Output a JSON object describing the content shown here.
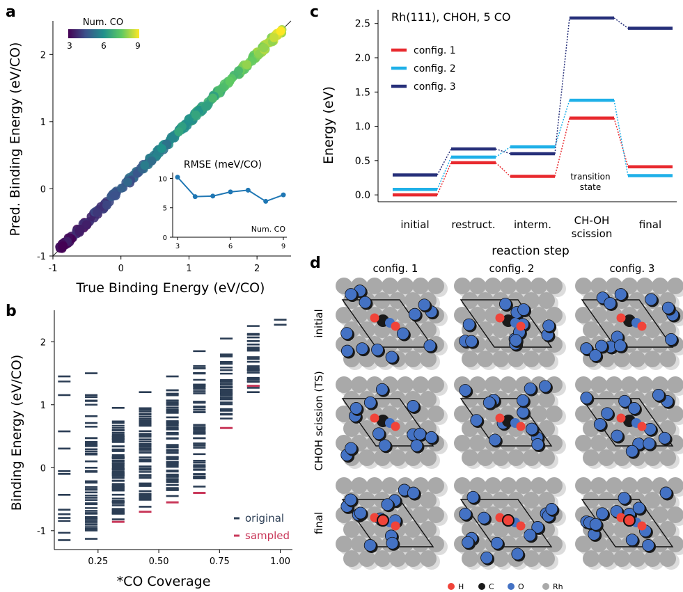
{
  "panels": {
    "a": {
      "letter": "a",
      "xlabel": "True Binding Energy (eV/CO)",
      "ylabel": "Pred. Binding Energy (eV/CO)",
      "x_ticks": [
        "-1",
        "0",
        "1",
        "2"
      ],
      "y_ticks": [
        "-1",
        "0",
        "1",
        "2"
      ],
      "colorbar_title": "Num. CO",
      "colorbar_ticks": [
        "3",
        "6",
        "9"
      ],
      "colors": {
        "low": "#440154",
        "mid": "#21918c",
        "high": "#fde725"
      },
      "inset": {
        "title": "RMSE (meV/CO)",
        "xlabel": "Num. CO",
        "x_ticks": [
          "3",
          "6",
          "9"
        ],
        "y_ticks": [
          "0",
          "5",
          "10"
        ]
      }
    },
    "b": {
      "letter": "b",
      "xlabel": "*CO Coverage",
      "ylabel": "Binding Energy (eV/CO)",
      "x_ticks": [
        "0.25",
        "0.50",
        "0.75",
        "1.00"
      ],
      "y_ticks": [
        "-1",
        "0",
        "1",
        "2"
      ],
      "legend": {
        "original": "original",
        "sampled": "sampled"
      },
      "colors": {
        "original": "#2c3e55",
        "sampled": "#c9385a"
      }
    },
    "c": {
      "letter": "c",
      "title": "Rh(111), CHOH, 5 CO",
      "ylabel": "Energy (eV)",
      "xlabel": "reaction step",
      "y_ticks": [
        "0.0",
        "0.5",
        "1.0",
        "1.5",
        "2.0",
        "2.5"
      ],
      "steps": [
        "initial",
        "restruct.",
        "interm.",
        "CH-OH\nscission",
        "final"
      ],
      "annotation": "transition\nstate",
      "legend": [
        "config. 1",
        "config. 2",
        "config. 3"
      ]
    },
    "d": {
      "letter": "d",
      "columns": [
        "config. 1",
        "config. 2",
        "config. 3"
      ],
      "rows": [
        "initial",
        "CHOH scission (TS)",
        "final"
      ],
      "legend": [
        "H",
        "C",
        "O",
        "Rh"
      ],
      "colors": {
        "H": "#f0443a",
        "C": "#1a1a1a",
        "O": "#4472c4",
        "Rh": "#a9a9a9"
      }
    }
  },
  "chart_data": [
    {
      "type": "scatter",
      "panel": "a",
      "x": [
        -0.85,
        -0.6,
        -0.35,
        -0.1,
        0.1,
        0.35,
        0.6,
        0.85,
        1.1,
        1.35,
        1.6,
        1.85,
        2.1,
        2.25,
        2.35
      ],
      "y": [
        -0.85,
        -0.6,
        -0.35,
        -0.1,
        0.1,
        0.35,
        0.6,
        0.85,
        1.1,
        1.35,
        1.6,
        1.85,
        2.1,
        2.25,
        2.35
      ],
      "color_value": [
        3,
        3.5,
        4,
        4.5,
        5,
        5.5,
        6,
        6.5,
        6.5,
        7,
        7.5,
        8,
        8,
        8.5,
        9
      ],
      "xlim": [
        -1,
        2.5
      ],
      "ylim": [
        -1,
        2.5
      ]
    },
    {
      "type": "line",
      "panel": "a-inset",
      "x": [
        3,
        4,
        5,
        6,
        7,
        8,
        9
      ],
      "y": [
        10.2,
        6.9,
        7.0,
        7.7,
        8.0,
        6.1,
        7.2
      ],
      "xlim": [
        3,
        9
      ],
      "ylim": [
        0,
        11
      ]
    },
    {
      "type": "scatter",
      "panel": "b",
      "categories": [
        0.111,
        0.222,
        0.333,
        0.444,
        0.556,
        0.667,
        0.778,
        0.889,
        1.0
      ],
      "original_min": [
        -1.15,
        -1.13,
        -0.82,
        -0.62,
        -0.45,
        -0.3,
        0.78,
        1.2,
        2.27
      ],
      "original_max": [
        1.45,
        1.5,
        0.95,
        1.2,
        1.45,
        1.85,
        2.05,
        2.25,
        2.35
      ],
      "sampled": [
        null,
        null,
        -0.86,
        -0.7,
        -0.55,
        -0.4,
        0.63,
        1.3,
        null
      ],
      "xlim": [
        0.07,
        1.05
      ],
      "ylim": [
        -1.3,
        2.5
      ]
    },
    {
      "type": "line",
      "panel": "c",
      "series": [
        {
          "name": "config. 1",
          "values": [
            0.0,
            0.47,
            0.27,
            1.12,
            0.41
          ]
        },
        {
          "name": "config. 2",
          "values": [
            0.08,
            0.55,
            0.7,
            1.38,
            0.28
          ]
        },
        {
          "name": "config. 3",
          "values": [
            0.29,
            0.67,
            0.6,
            2.58,
            2.43
          ]
        }
      ],
      "colors": [
        "#e8292e",
        "#1fb0e8",
        "#27307a"
      ],
      "ylim": [
        -0.1,
        2.7
      ]
    }
  ]
}
